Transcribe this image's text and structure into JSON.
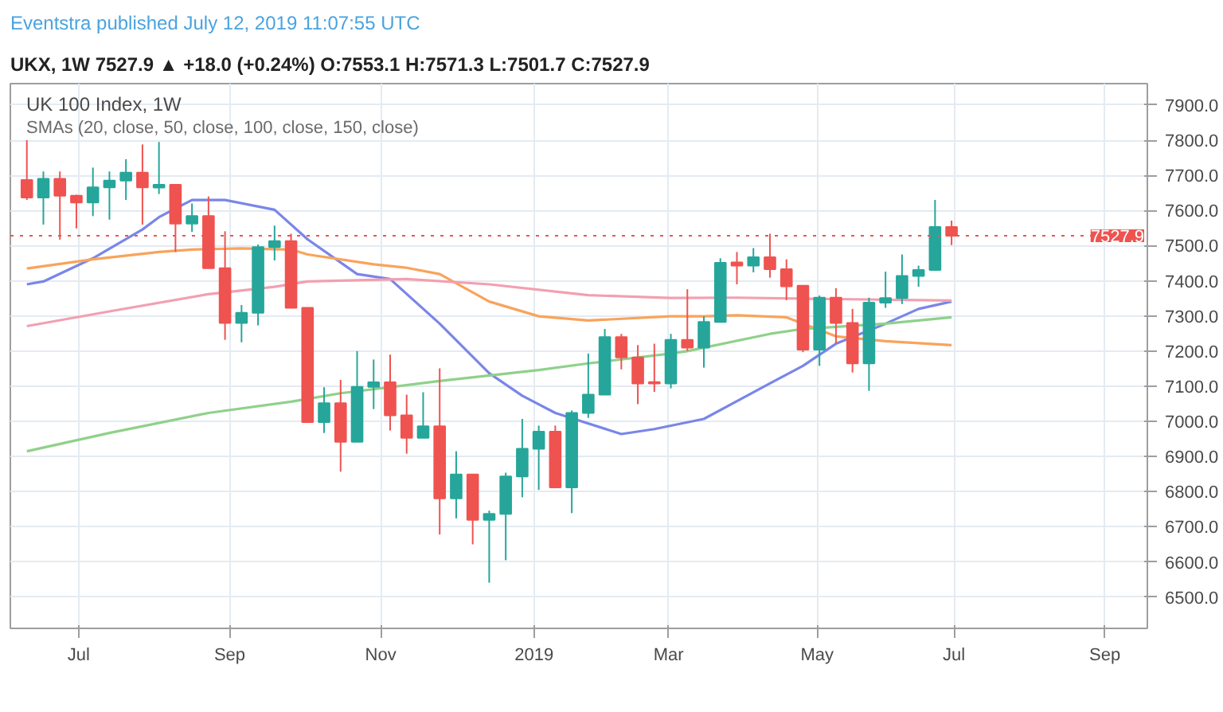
{
  "chart_data": {
    "type": "candlestick",
    "title": "UK 100 Index, 1W",
    "subtitle": "SMAs (20, close, 50, close, 100, close, 150, close)",
    "annotations": [
      "Eventstra published July 12, 2019 11:07:55 UTC",
      "UKX, 1W  7527.9 ▲ +18.0 (+0.24%)  O:7553.1 H:7571.3 L:7501.7 C:7527.9"
    ],
    "x": [
      "2018-06-11",
      "2018-06-18",
      "2018-06-25",
      "2018-07-02",
      "2018-07-09",
      "2018-07-16",
      "2018-07-23",
      "2018-07-30",
      "2018-08-06",
      "2018-08-13",
      "2018-08-20",
      "2018-08-27",
      "2018-09-03",
      "2018-09-10",
      "2018-09-17",
      "2018-09-24",
      "2018-10-01",
      "2018-10-08",
      "2018-10-15",
      "2018-10-22",
      "2018-10-29",
      "2018-11-05",
      "2018-11-12",
      "2018-11-19",
      "2018-11-26",
      "2018-12-03",
      "2018-12-10",
      "2018-12-17",
      "2018-12-24",
      "2018-12-31",
      "2019-01-07",
      "2019-01-14",
      "2019-01-21",
      "2019-01-28",
      "2019-02-04",
      "2019-02-11",
      "2019-02-18",
      "2019-02-25",
      "2019-03-04",
      "2019-03-11",
      "2019-03-18",
      "2019-03-25",
      "2019-04-01",
      "2019-04-08",
      "2019-04-15",
      "2019-04-22",
      "2019-04-29",
      "2019-05-06",
      "2019-05-13",
      "2019-05-20",
      "2019-05-27",
      "2019-06-03",
      "2019-06-10",
      "2019-06-17",
      "2019-06-24",
      "2019-07-01",
      "2019-07-08"
    ],
    "ohlc": [
      [
        7687,
        7800,
        7630,
        7637
      ],
      [
        7637,
        7711,
        7560,
        7690
      ],
      [
        7690,
        7711,
        7517,
        7642
      ],
      [
        7642,
        7645,
        7549,
        7623
      ],
      [
        7623,
        7722,
        7584,
        7666
      ],
      [
        7666,
        7711,
        7574,
        7685
      ],
      [
        7685,
        7746,
        7630,
        7708
      ],
      [
        7708,
        7788,
        7560,
        7666
      ],
      [
        7665,
        7795,
        7647,
        7673
      ],
      [
        7673,
        7673,
        7482,
        7563
      ],
      [
        7563,
        7620,
        7539,
        7584
      ],
      [
        7584,
        7640,
        7436,
        7436
      ],
      [
        7436,
        7541,
        7232,
        7280
      ],
      [
        7280,
        7331,
        7225,
        7309
      ],
      [
        7309,
        7503,
        7273,
        7496
      ],
      [
        7496,
        7557,
        7458,
        7513
      ],
      [
        7513,
        7534,
        7323,
        7323
      ],
      [
        7323,
        7323,
        6998,
        6998
      ],
      [
        6998,
        7097,
        6967,
        7052
      ],
      [
        7052,
        7118,
        6857,
        6942
      ],
      [
        6942,
        7200,
        6942,
        7098
      ],
      [
        7098,
        7176,
        7035,
        7111
      ],
      [
        7111,
        7190,
        6974,
        7017
      ],
      [
        7017,
        7076,
        6908,
        6953
      ],
      [
        6953,
        7083,
        6953,
        6986
      ],
      [
        6986,
        7151,
        6678,
        6781
      ],
      [
        6781,
        6915,
        6724,
        6849
      ],
      [
        6849,
        6849,
        6650,
        6720
      ],
      [
        6720,
        6746,
        6541,
        6737
      ],
      [
        6737,
        6854,
        6605,
        6843
      ],
      [
        6843,
        7007,
        6784,
        6922
      ],
      [
        6922,
        6988,
        6805,
        6971
      ],
      [
        6971,
        6988,
        6812,
        6812
      ],
      [
        6812,
        7031,
        6739,
        7024
      ],
      [
        7024,
        7193,
        7010,
        7076
      ],
      [
        7076,
        7263,
        7076,
        7240
      ],
      [
        7240,
        7249,
        7148,
        7182
      ],
      [
        7182,
        7217,
        7049,
        7108
      ],
      [
        7112,
        7221,
        7084,
        7108
      ],
      [
        7108,
        7249,
        7094,
        7232
      ],
      [
        7232,
        7376,
        7200,
        7210
      ],
      [
        7210,
        7299,
        7153,
        7283
      ],
      [
        7283,
        7464,
        7283,
        7451
      ],
      [
        7452,
        7482,
        7390,
        7443
      ],
      [
        7443,
        7493,
        7424,
        7467
      ],
      [
        7467,
        7534,
        7409,
        7433
      ],
      [
        7433,
        7461,
        7345,
        7384
      ],
      [
        7386,
        7386,
        7197,
        7204
      ],
      [
        7204,
        7358,
        7158,
        7352
      ],
      [
        7352,
        7379,
        7221,
        7280
      ],
      [
        7280,
        7320,
        7139,
        7165
      ],
      [
        7165,
        7352,
        7087,
        7338
      ],
      [
        7338,
        7426,
        7323,
        7351
      ],
      [
        7351,
        7475,
        7334,
        7414
      ],
      [
        7414,
        7443,
        7383,
        7431
      ],
      [
        7431,
        7630,
        7431,
        7553
      ],
      [
        7553.1,
        7571.3,
        7501.7,
        7527.9
      ]
    ],
    "colors": [
      "#ef5350",
      "#26a69a",
      "#ef5350",
      "#ef5350",
      "#26a69a",
      "#26a69a",
      "#26a69a",
      "#ef5350",
      "#26a69a",
      "#ef5350",
      "#26a69a",
      "#ef5350",
      "#ef5350",
      "#26a69a",
      "#26a69a",
      "#26a69a",
      "#ef5350",
      "#ef5350",
      "#26a69a",
      "#ef5350",
      "#26a69a",
      "#26a69a",
      "#ef5350",
      "#ef5350",
      "#26a69a",
      "#ef5350",
      "#26a69a",
      "#ef5350",
      "#26a69a",
      "#26a69a",
      "#26a69a",
      "#26a69a",
      "#ef5350",
      "#26a69a",
      "#26a69a",
      "#26a69a",
      "#ef5350",
      "#ef5350",
      "#ef5350",
      "#26a69a",
      "#ef5350",
      "#26a69a",
      "#26a69a",
      "#ef5350",
      "#26a69a",
      "#ef5350",
      "#ef5350",
      "#ef5350",
      "#26a69a",
      "#ef5350",
      "#ef5350",
      "#26a69a",
      "#26a69a",
      "#26a69a",
      "#26a69a",
      "#26a69a",
      "#ef5350"
    ],
    "series": [
      {
        "type": "line",
        "color": "#7986e8",
        "x": [
          "2018-06-11",
          "2018-06-18",
          "2018-07-09",
          "2018-07-30",
          "2018-08-06",
          "2018-08-20",
          "2018-09-03",
          "2018-09-24",
          "2018-10-08",
          "2018-10-29",
          "2018-11-12",
          "2018-12-03",
          "2018-12-24",
          "2019-01-07",
          "2019-01-21",
          "2019-02-18",
          "2019-03-04",
          "2019-03-25",
          "2019-04-22",
          "2019-05-06",
          "2019-05-20",
          "2019-06-10",
          "2019-06-24",
          "2019-07-08"
        ],
        "values": [
          7390,
          7398,
          7464,
          7546,
          7581,
          7630,
          7630,
          7602,
          7518,
          7419,
          7405,
          7278,
          7137,
          7073,
          7024,
          6964,
          6978,
          7007,
          7108,
          7158,
          7221,
          7278,
          7320,
          7341
        ]
      },
      {
        "type": "line",
        "color": "#f9a35b",
        "x": [
          "2018-06-11",
          "2018-07-09",
          "2018-08-06",
          "2018-08-20",
          "2018-09-10",
          "2018-10-01",
          "2018-10-08",
          "2018-11-05",
          "2018-11-19",
          "2018-12-03",
          "2018-12-10",
          "2018-12-24",
          "2019-01-14",
          "2019-02-04",
          "2019-03-11",
          "2019-03-25",
          "2019-04-08",
          "2019-04-29",
          "2019-05-20",
          "2019-06-10",
          "2019-07-08"
        ],
        "values": [
          7435,
          7461,
          7482,
          7489,
          7492,
          7489,
          7475,
          7447,
          7437,
          7419,
          7393,
          7341,
          7299,
          7287,
          7299,
          7299,
          7302,
          7296,
          7242,
          7228,
          7217
        ]
      },
      {
        "type": "line",
        "color": "#f2a0b0",
        "x": [
          "2018-06-11",
          "2018-07-16",
          "2018-08-27",
          "2018-09-24",
          "2018-10-08",
          "2018-11-19",
          "2018-12-24",
          "2019-02-04",
          "2019-03-11",
          "2019-04-08",
          "2019-05-20",
          "2019-07-08"
        ],
        "values": [
          7271,
          7313,
          7362,
          7383,
          7398,
          7405,
          7390,
          7359,
          7351,
          7352,
          7348,
          7344
        ]
      },
      {
        "type": "line",
        "color": "#8fd18a",
        "x": [
          "2018-06-11",
          "2018-07-16",
          "2018-08-27",
          "2018-10-01",
          "2018-10-22",
          "2018-12-03",
          "2019-01-14",
          "2019-02-04",
          "2019-03-11",
          "2019-03-18",
          "2019-04-22",
          "2019-05-06",
          "2019-06-10",
          "2019-07-08"
        ],
        "values": [
          6915,
          6967,
          7024,
          7056,
          7080,
          7115,
          7146,
          7165,
          7193,
          7200,
          7249,
          7263,
          7278,
          7296
        ]
      }
    ],
    "xlim": [
      "2018-06-04",
      "2019-09-29"
    ],
    "xticks": [
      {
        "value": "2018-07-03",
        "label": "Jul"
      },
      {
        "value": "2018-09-05",
        "label": "Sep"
      },
      {
        "value": "2018-11-08",
        "label": "Nov"
      },
      {
        "value": "2019-01-12",
        "label": "2019"
      },
      {
        "value": "2019-03-10",
        "label": "Mar"
      },
      {
        "value": "2019-05-12",
        "label": "May"
      },
      {
        "value": "2019-07-09",
        "label": "Jul"
      },
      {
        "value": "2019-09-11",
        "label": "Sep"
      }
    ],
    "ylim": [
      6411,
      7961
    ],
    "yticks": [
      {
        "value": 6500,
        "label": "6500.0"
      },
      {
        "value": 6600,
        "label": "6600.0"
      },
      {
        "value": 6700,
        "label": "6700.0"
      },
      {
        "value": 6800,
        "label": "6800.0"
      },
      {
        "value": 6900,
        "label": "6900.0"
      },
      {
        "value": 7000,
        "label": "7000.0"
      },
      {
        "value": 7100,
        "label": "7100.0"
      },
      {
        "value": 7200,
        "label": "7200.0"
      },
      {
        "value": 7300,
        "label": "7300.0"
      },
      {
        "value": 7400,
        "label": "7400.0"
      },
      {
        "value": 7500,
        "label": "7500.0"
      },
      {
        "value": 7600,
        "label": "7600.0"
      },
      {
        "value": 7700,
        "label": "7700.0"
      },
      {
        "value": 7800,
        "label": "7800.0"
      },
      {
        "value": 7900,
        "label": "7900.0"
      }
    ],
    "ref_lines": [
      {
        "axis": "y",
        "value": 7527.9,
        "label": "7527.9",
        "color": "#ef5350",
        "line_style": "dotted"
      }
    ],
    "grid": true
  }
}
